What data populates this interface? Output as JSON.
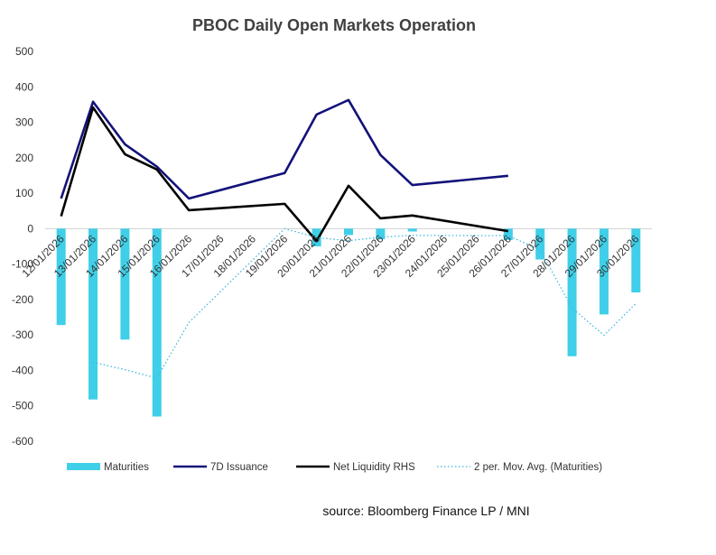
{
  "chart_data": {
    "type": "bar",
    "title": "PBOC Daily Open Markets Operation",
    "source": "source:  Bloomberg Finance LP / MNI",
    "categories": [
      "12/01/2026",
      "13/01/2026",
      "14/01/2026",
      "15/01/2026",
      "16/01/2026",
      "17/01/2026",
      "18/01/2026",
      "19/01/2026",
      "20/01/2026",
      "21/01/2026",
      "22/01/2026",
      "23/01/2026",
      "24/01/2026",
      "25/01/2026",
      "26/01/2026",
      "27/01/2026",
      "28/01/2026",
      "29/01/2026",
      "30/01/2026"
    ],
    "ylim": [
      -600,
      500
    ],
    "yticks": [
      500,
      400,
      300,
      200,
      100,
      0,
      -100,
      -200,
      -300,
      -400,
      -500,
      -600
    ],
    "grid": false,
    "legend_position": "bottom",
    "series": [
      {
        "name": "Maturities",
        "kind": "bar",
        "color": "#3fcfe8",
        "values": [
          -272,
          -482,
          -313,
          -530,
          null,
          null,
          null,
          null,
          -50,
          -18,
          -30,
          -8,
          null,
          null,
          -32,
          -87,
          -360,
          -242,
          -180
        ]
      },
      {
        "name": "7D Issuance",
        "kind": "line",
        "color": "#12127a",
        "values": [
          85,
          358,
          238,
          175,
          85,
          null,
          null,
          157,
          322,
          363,
          208,
          123,
          null,
          null,
          149,
          null,
          null,
          null,
          null
        ]
      },
      {
        "name": "Net Liquidity RHS",
        "kind": "line",
        "color": "#000000",
        "values": [
          35,
          342,
          210,
          167,
          52,
          null,
          null,
          70,
          -35,
          121,
          29,
          37,
          null,
          null,
          -7,
          null,
          null,
          null,
          null
        ]
      },
      {
        "name": "2 per. Mov. Avg. (Maturities)",
        "kind": "dotted-line",
        "color": "#3fb8e0",
        "values": [
          null,
          -377,
          -398,
          -422,
          -265,
          null,
          null,
          0,
          -25,
          -34,
          -24,
          -19,
          null,
          null,
          -20,
          -60,
          -224,
          -301,
          -211
        ]
      }
    ]
  }
}
